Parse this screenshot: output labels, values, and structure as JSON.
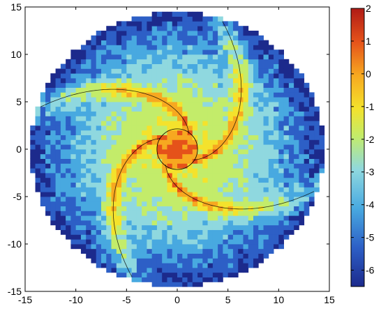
{
  "chart_data": {
    "type": "heatmap",
    "subtype": "filled-contour",
    "title": "",
    "xlabel": "",
    "ylabel": "",
    "xlim": [
      -15,
      15
    ],
    "ylim": [
      -15,
      15
    ],
    "x_ticks": [
      "-15",
      "-10",
      "-5",
      "0",
      "5",
      "10",
      "15"
    ],
    "y_ticks": [
      "15",
      "10",
      "5",
      "0",
      "-5",
      "-10",
      "-15"
    ],
    "grid": false,
    "colormap": "jet",
    "colorbar": {
      "position": "right",
      "range": [
        -6.5,
        2
      ],
      "tick_values": [
        2,
        1,
        0,
        -1,
        -2,
        -3,
        -4,
        -5,
        -6
      ],
      "tick_labels": [
        "2",
        "1",
        "0",
        "-1",
        "-2",
        "-3",
        "-4",
        "-5",
        "-6"
      ]
    },
    "field": {
      "shape": "disk",
      "radius": 14.5,
      "core": {
        "center": [
          0,
          0
        ],
        "radius": 2,
        "level": 0.5
      },
      "spiral_arms": 4,
      "arm_level": 1.5,
      "edge_level": -6
    },
    "contour_levels": [
      -6,
      -5,
      -4,
      -3,
      -2,
      -1,
      0,
      1,
      2
    ],
    "colors": {
      "level_-6": "#1c2a8c",
      "level_-5": "#2d5fc6",
      "level_-4": "#48a9e0",
      "level_-3": "#8fd8df",
      "level_-2": "#c3ec6a",
      "level_-1": "#f4e22c",
      "level_0": "#f7a820",
      "level_1": "#e5521a",
      "level_2": "#b01b16",
      "contour_line": "#000000"
    }
  }
}
